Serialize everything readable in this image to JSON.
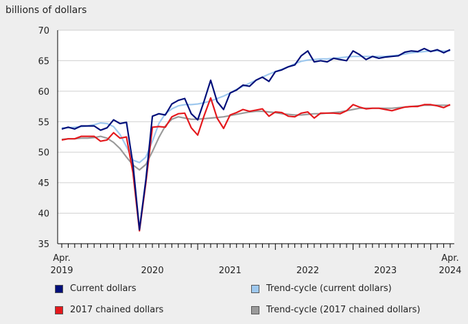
{
  "chart_data": {
    "type": "line",
    "ylabel": "billions of dollars",
    "ylim": [
      35,
      70
    ],
    "yticks": [
      35,
      40,
      45,
      50,
      55,
      60,
      65,
      70
    ],
    "x_start": "2019-04",
    "x_end": "2024-04",
    "x_tick_labels": [
      {
        "month": "2019-04",
        "line1": "Apr.",
        "line2": "2019"
      },
      {
        "month": "2020-06",
        "line1": "",
        "line2": "2020"
      },
      {
        "month": "2021-06",
        "line1": "",
        "line2": "2021"
      },
      {
        "month": "2022-06",
        "line1": "",
        "line2": "2022"
      },
      {
        "month": "2023-06",
        "line1": "",
        "line2": "2023"
      },
      {
        "month": "2024-04",
        "line1": "Apr.",
        "line2": "2024"
      }
    ],
    "grid": "horizontal",
    "legend_position": "bottom",
    "series": [
      {
        "name": "Current dollars",
        "color": "#000f7a",
        "width": 2.2,
        "values": [
          53.8,
          54.1,
          53.8,
          54.3,
          54.3,
          54.3,
          53.6,
          54.0,
          55.3,
          54.7,
          54.9,
          48.0,
          37.3,
          45.5,
          55.9,
          56.3,
          56.1,
          57.9,
          58.5,
          58.8,
          56.3,
          55.3,
          58.4,
          61.8,
          58.3,
          57.0,
          59.7,
          60.2,
          61.0,
          60.8,
          61.8,
          62.3,
          61.6,
          63.2,
          63.5,
          64.0,
          64.3,
          65.8,
          66.6,
          64.8,
          65.0,
          64.8,
          65.4,
          65.2,
          65.0,
          66.6,
          66.0,
          65.2,
          65.7,
          65.4,
          65.6,
          65.7,
          65.8,
          66.4,
          66.6,
          66.5,
          67.0,
          66.5,
          66.8,
          66.3,
          66.8
        ]
      },
      {
        "name": "Trend-cycle (current dollars)",
        "color": "#9ec8ee",
        "width": 2.2,
        "values": [
          54.0,
          54.0,
          54.1,
          54.2,
          54.3,
          54.5,
          54.8,
          54.7,
          54.2,
          52.9,
          50.9,
          48.7,
          48.3,
          49.2,
          51.8,
          54.7,
          56.3,
          57.1,
          57.6,
          57.8,
          57.8,
          57.9,
          58.1,
          58.4,
          58.8,
          59.2,
          59.7,
          60.3,
          60.8,
          61.3,
          61.8,
          62.3,
          62.8,
          63.2,
          63.6,
          64.0,
          64.5,
          64.9,
          65.1,
          65.2,
          65.3,
          65.3,
          65.4,
          65.5,
          65.6,
          65.7,
          65.7,
          65.7,
          65.7,
          65.7,
          65.7,
          65.8,
          65.9,
          66.1,
          66.3,
          66.4,
          66.5,
          66.6,
          66.6,
          66.6,
          66.6
        ]
      },
      {
        "name": "2017 chained dollars",
        "color": "#e4181c",
        "width": 2.2,
        "values": [
          52.0,
          52.2,
          52.2,
          52.6,
          52.6,
          52.6,
          51.8,
          52.0,
          53.2,
          52.3,
          52.5,
          46.6,
          37.1,
          45.0,
          54.1,
          54.2,
          54.1,
          55.8,
          56.3,
          56.4,
          54.0,
          52.8,
          56.0,
          58.9,
          55.6,
          53.9,
          56.1,
          56.5,
          57.0,
          56.7,
          56.9,
          57.1,
          55.9,
          56.6,
          56.5,
          55.9,
          55.8,
          56.4,
          56.6,
          55.6,
          56.4,
          56.4,
          56.4,
          56.3,
          56.8,
          57.8,
          57.4,
          57.1,
          57.2,
          57.2,
          57.0,
          56.8,
          57.1,
          57.4,
          57.5,
          57.5,
          57.8,
          57.8,
          57.6,
          57.3,
          57.8
        ]
      },
      {
        "name": "Trend-cycle (2017 chained dollars)",
        "color": "#9a9a9a",
        "width": 2.2,
        "values": [
          52.1,
          52.2,
          52.2,
          52.3,
          52.3,
          52.4,
          52.6,
          52.3,
          51.6,
          50.6,
          49.2,
          47.9,
          47.1,
          48.0,
          50.1,
          52.4,
          54.3,
          55.4,
          55.8,
          55.6,
          55.4,
          55.4,
          55.5,
          55.6,
          55.7,
          55.8,
          56.0,
          56.2,
          56.4,
          56.6,
          56.7,
          56.7,
          56.6,
          56.5,
          56.3,
          56.2,
          56.1,
          56.1,
          56.2,
          56.3,
          56.3,
          56.4,
          56.5,
          56.6,
          56.8,
          57.0,
          57.2,
          57.2,
          57.2,
          57.2,
          57.2,
          57.2,
          57.3,
          57.4,
          57.5,
          57.6,
          57.7,
          57.7,
          57.7,
          57.7,
          57.7
        ]
      }
    ]
  }
}
